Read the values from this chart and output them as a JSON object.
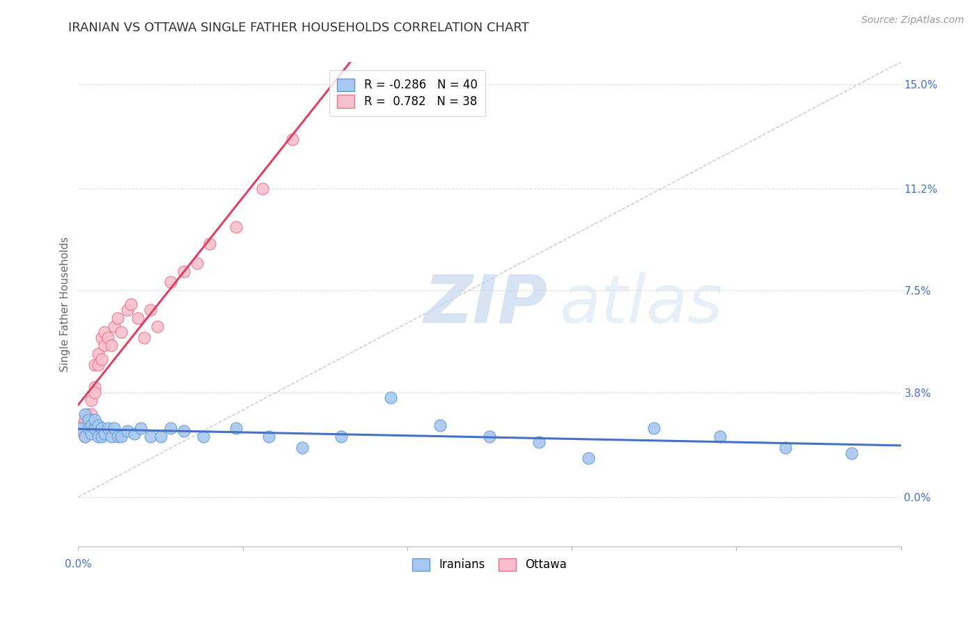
{
  "title": "IRANIAN VS OTTAWA SINGLE FATHER HOUSEHOLDS CORRELATION CHART",
  "source": "Source: ZipAtlas.com",
  "ylabel": "Single Father Households",
  "right_yticks": [
    0.0,
    0.038,
    0.075,
    0.112,
    0.15
  ],
  "right_yticklabels": [
    "0.0%",
    "3.8%",
    "7.5%",
    "11.2%",
    "15.0%"
  ],
  "xmin": 0.0,
  "xmax": 0.25,
  "ymin": -0.018,
  "ymax": 0.158,
  "legend1_label_blue": "R = -0.286   N = 40",
  "legend1_label_pink": "R =  0.782   N = 38",
  "legend2_label_blue": "Iranians",
  "legend2_label_pink": "Ottawa",
  "iranians_x": [
    0.001,
    0.002,
    0.002,
    0.003,
    0.003,
    0.004,
    0.004,
    0.005,
    0.005,
    0.006,
    0.006,
    0.007,
    0.007,
    0.008,
    0.009,
    0.01,
    0.011,
    0.012,
    0.013,
    0.015,
    0.017,
    0.019,
    0.022,
    0.025,
    0.028,
    0.032,
    0.038,
    0.048,
    0.058,
    0.068,
    0.08,
    0.095,
    0.11,
    0.125,
    0.14,
    0.155,
    0.175,
    0.195,
    0.215,
    0.235
  ],
  "iranians_y": [
    0.025,
    0.03,
    0.022,
    0.028,
    0.025,
    0.023,
    0.026,
    0.025,
    0.028,
    0.026,
    0.022,
    0.025,
    0.022,
    0.023,
    0.025,
    0.022,
    0.025,
    0.022,
    0.022,
    0.024,
    0.023,
    0.025,
    0.022,
    0.022,
    0.025,
    0.024,
    0.022,
    0.025,
    0.022,
    0.018,
    0.022,
    0.036,
    0.026,
    0.022,
    0.02,
    0.014,
    0.025,
    0.022,
    0.018,
    0.016
  ],
  "ottawa_x": [
    0.001,
    0.001,
    0.002,
    0.002,
    0.002,
    0.003,
    0.003,
    0.003,
    0.004,
    0.004,
    0.004,
    0.005,
    0.005,
    0.005,
    0.006,
    0.006,
    0.007,
    0.007,
    0.008,
    0.008,
    0.009,
    0.01,
    0.011,
    0.012,
    0.013,
    0.015,
    0.016,
    0.018,
    0.02,
    0.022,
    0.024,
    0.028,
    0.032,
    0.036,
    0.04,
    0.048,
    0.056,
    0.065
  ],
  "ottawa_y": [
    0.024,
    0.026,
    0.022,
    0.025,
    0.028,
    0.028,
    0.03,
    0.025,
    0.03,
    0.035,
    0.028,
    0.04,
    0.038,
    0.048,
    0.048,
    0.052,
    0.05,
    0.058,
    0.055,
    0.06,
    0.058,
    0.055,
    0.062,
    0.065,
    0.06,
    0.068,
    0.07,
    0.065,
    0.058,
    0.068,
    0.062,
    0.078,
    0.082,
    0.085,
    0.092,
    0.098,
    0.112,
    0.13
  ],
  "iranian_scatter_color": "#A8C8F0",
  "iranian_edge_color": "#5B9BD5",
  "ottawa_scatter_color": "#F8C0CC",
  "ottawa_edge_color": "#E87090",
  "iranian_line_color": "#4472C4",
  "ottawa_line_color": "#E04060",
  "diagonal_color": "#C8C8C8",
  "grid_color": "#DDDDDD",
  "title_color": "#333333",
  "axis_label_color": "#4472C4",
  "ylabel_color": "#666666",
  "title_fontsize": 13,
  "ylabel_fontsize": 11,
  "tick_fontsize": 11,
  "legend_fontsize": 12,
  "source_fontsize": 10
}
